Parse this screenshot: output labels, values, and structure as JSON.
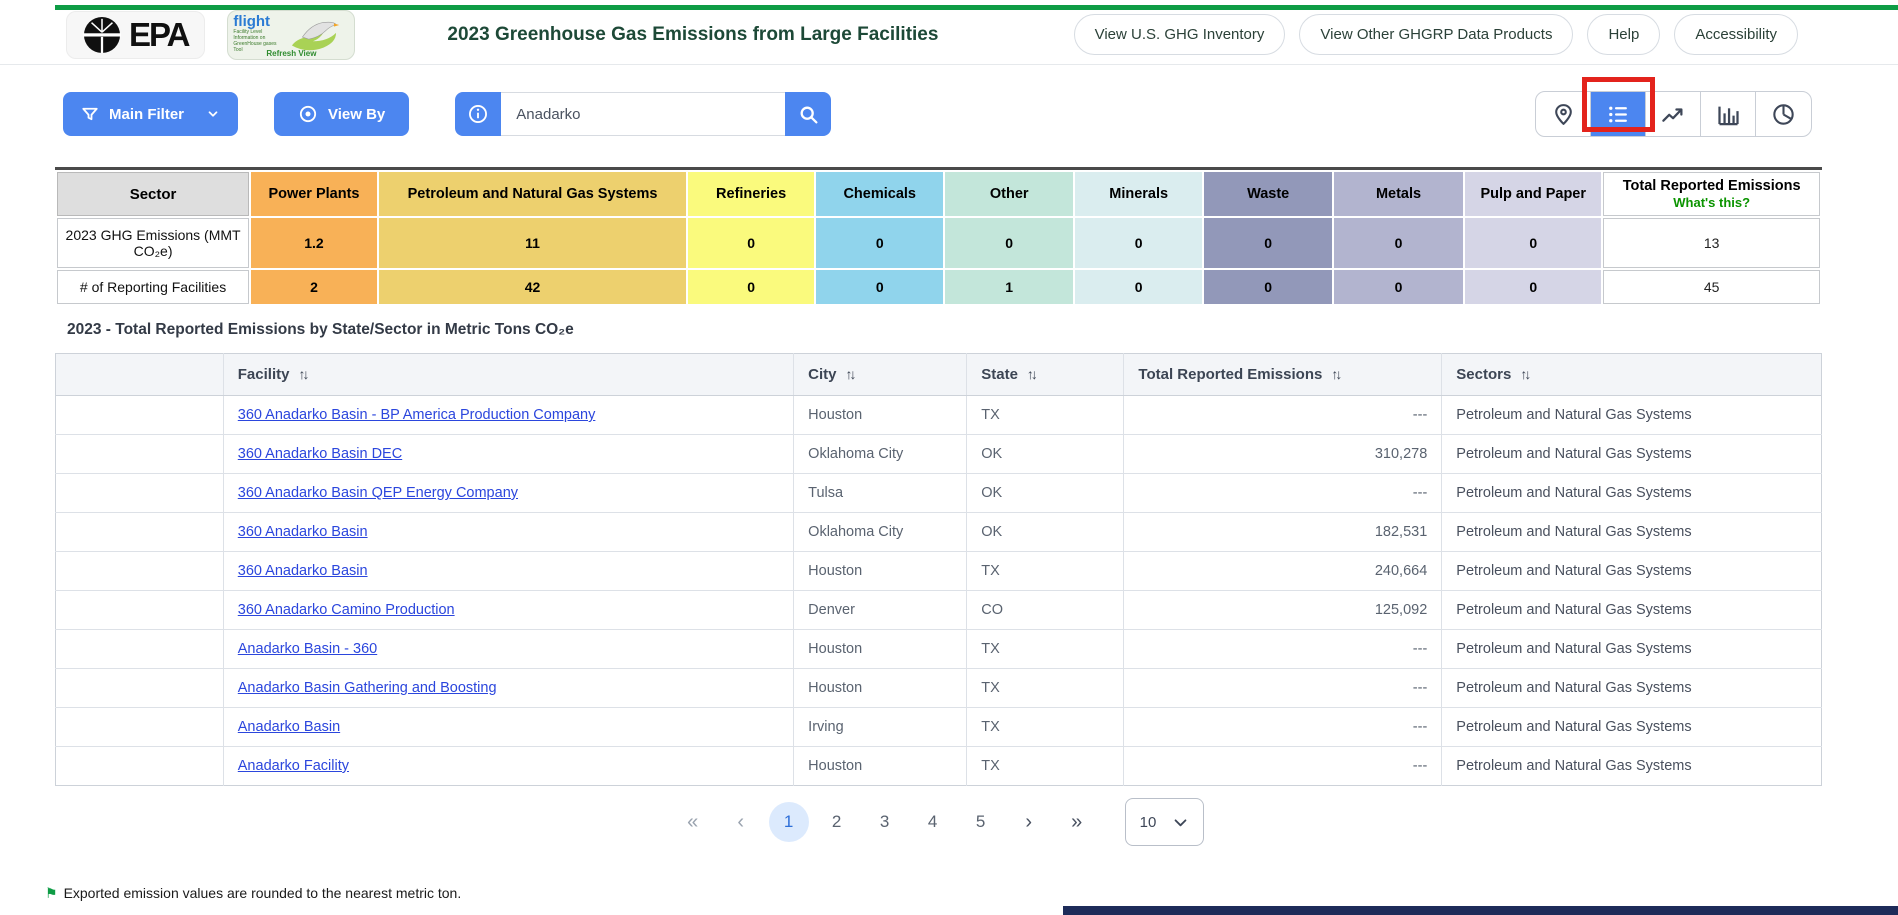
{
  "header": {
    "epa_logo": "EPA",
    "flight_logo": {
      "name": "flight",
      "tagline": "Facility Level Information on GreenHouse gases Tool",
      "refresh_link": "Refresh View"
    },
    "title": "2023 Greenhouse Gas Emissions from Large Facilities",
    "nav_buttons": [
      {
        "label": "View U.S. GHG Inventory"
      },
      {
        "label": "View Other GHGRP Data Products"
      },
      {
        "label": "Help"
      },
      {
        "label": "Accessibility"
      }
    ]
  },
  "toolbar": {
    "main_filter": "Main Filter",
    "view_by": "View By",
    "search": {
      "value": "Anadarko"
    },
    "views": [
      {
        "name": "map",
        "icon": "map-pin-icon",
        "active": false
      },
      {
        "name": "list",
        "icon": "list-icon",
        "active": true,
        "highlighted_red_box": true
      },
      {
        "name": "trend",
        "icon": "line-chart-icon",
        "active": false
      },
      {
        "name": "bar",
        "icon": "bar-chart-icon",
        "active": false
      },
      {
        "name": "pie",
        "icon": "pie-chart-icon",
        "active": false
      }
    ]
  },
  "sector_summary": {
    "corner_label": "Sector",
    "total_header": "Total Reported Emissions",
    "whats_this": "What's this?",
    "columns": [
      {
        "label": "Power Plants",
        "color": "#F8B157"
      },
      {
        "label": "Petroleum and Natural Gas Systems",
        "color": "#EDD06E"
      },
      {
        "label": "Refineries",
        "color": "#FAFA7D"
      },
      {
        "label": "Chemicals",
        "color": "#90D4EC"
      },
      {
        "label": "Other",
        "color": "#C3E6DA"
      },
      {
        "label": "Minerals",
        "color": "#DAEDEF"
      },
      {
        "label": "Waste",
        "color": "#9298B9"
      },
      {
        "label": "Metals",
        "color": "#B2B4CF"
      },
      {
        "label": "Pulp and Paper",
        "color": "#D5D5E6"
      }
    ],
    "rows": [
      {
        "label": "2023 GHG Emissions (MMT CO₂e)",
        "values": [
          "1.2",
          "11",
          "0",
          "0",
          "0",
          "0",
          "0",
          "0",
          "0"
        ],
        "total": "13"
      },
      {
        "label": "# of Reporting Facilities",
        "values": [
          "2",
          "42",
          "0",
          "0",
          "1",
          "0",
          "0",
          "0",
          "0"
        ],
        "total": "45"
      }
    ]
  },
  "table_section": {
    "subtitle": "2023 - Total Reported Emissions by State/Sector in Metric Tons CO₂e"
  },
  "facility_table": {
    "sort_glyph": "↑↓",
    "columns": [
      {
        "label": "",
        "sortable": false
      },
      {
        "label": "Facility",
        "sortable": true
      },
      {
        "label": "City",
        "sortable": true
      },
      {
        "label": "State",
        "sortable": true
      },
      {
        "label": "Total Reported Emissions",
        "sortable": true
      },
      {
        "label": "Sectors",
        "sortable": true
      }
    ],
    "rows": [
      {
        "facility": "360 Anadarko Basin - BP America Production Company",
        "city": "Houston",
        "state": "TX",
        "emissions": "---",
        "sectors": "Petroleum and Natural Gas Systems"
      },
      {
        "facility": "360 Anadarko Basin DEC",
        "city": "Oklahoma City",
        "state": "OK",
        "emissions": "310,278",
        "sectors": "Petroleum and Natural Gas Systems"
      },
      {
        "facility": "360 Anadarko Basin QEP Energy Company",
        "city": "Tulsa",
        "state": "OK",
        "emissions": "---",
        "sectors": "Petroleum and Natural Gas Systems"
      },
      {
        "facility": "360 Anadarko Basin",
        "city": "Oklahoma City",
        "state": "OK",
        "emissions": "182,531",
        "sectors": "Petroleum and Natural Gas Systems"
      },
      {
        "facility": "360 Anadarko Basin",
        "city": "Houston",
        "state": "TX",
        "emissions": "240,664",
        "sectors": "Petroleum and Natural Gas Systems"
      },
      {
        "facility": "360 Anadarko Camino Production",
        "city": "Denver",
        "state": "CO",
        "emissions": "125,092",
        "sectors": "Petroleum and Natural Gas Systems"
      },
      {
        "facility": "Anadarko Basin - 360",
        "city": "Houston",
        "state": "TX",
        "emissions": "---",
        "sectors": "Petroleum and Natural Gas Systems"
      },
      {
        "facility": "Anadarko Basin Gathering and Boosting",
        "city": "Houston",
        "state": "TX",
        "emissions": "---",
        "sectors": "Petroleum and Natural Gas Systems"
      },
      {
        "facility": "Anadarko Basin",
        "city": "Irving",
        "state": "TX",
        "emissions": "---",
        "sectors": "Petroleum and Natural Gas Systems"
      },
      {
        "facility": "Anadarko Facility",
        "city": "Houston",
        "state": "TX",
        "emissions": "---",
        "sectors": "Petroleum and Natural Gas Systems"
      }
    ]
  },
  "pagination": {
    "first": "«",
    "prev": "‹",
    "pages": [
      "1",
      "2",
      "3",
      "4",
      "5"
    ],
    "active_page": "1",
    "next": "›",
    "last": "»",
    "page_size": "10"
  },
  "footer": {
    "note": "Exported emission values are rounded to the nearest metric ton."
  },
  "colors": {
    "accent_blue": "#4C86F0",
    "top_bar_green": "#0E9C45",
    "title_green": "#1D4937",
    "link_blue": "#2B46DD",
    "highlight_red": "#E3231C",
    "whats_this_green": "#0B9400"
  }
}
